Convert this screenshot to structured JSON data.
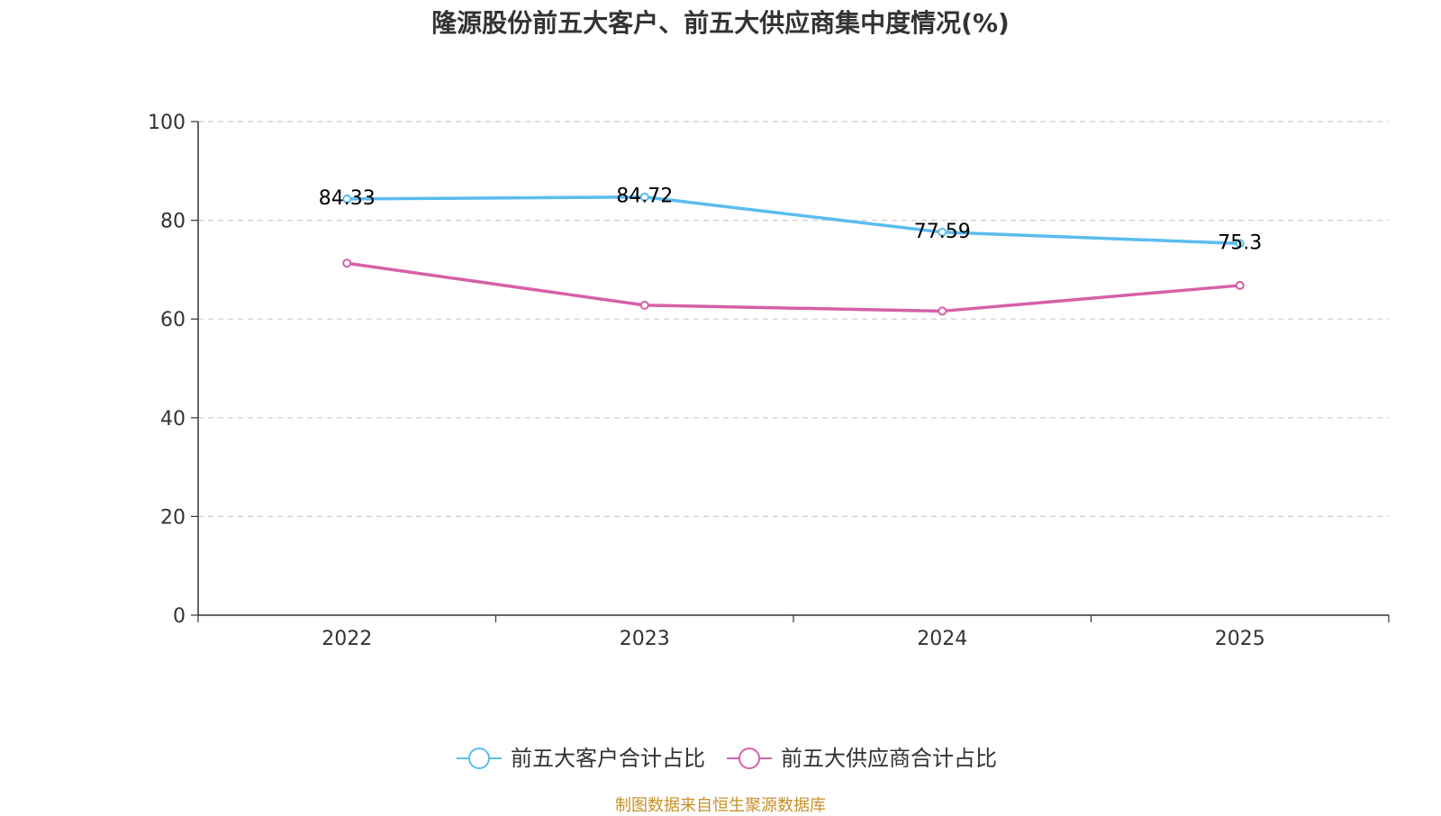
{
  "chart_data": {
    "type": "line",
    "title": "隆源股份前五大客户、前五大供应商集中度情况(%)",
    "categories": [
      "2022",
      "2023",
      "2024",
      "2025"
    ],
    "series": [
      {
        "name": "前五大客户合计占比",
        "values": [
          84.33,
          84.72,
          77.59,
          75.3
        ],
        "labels": [
          "84.33",
          "84.72",
          "77.59",
          "75.3"
        ],
        "color": "#5bbcf0"
      },
      {
        "name": "前五大供应商合计占比",
        "values": [
          71.3,
          62.8,
          61.6,
          66.8
        ],
        "color": "#d660a8"
      }
    ],
    "yticks": [
      "0",
      "20",
      "40",
      "60",
      "80",
      "100"
    ],
    "ylim": [
      0,
      100
    ],
    "xlabel": "",
    "ylabel": "",
    "grid": true,
    "legend": "bottom"
  },
  "source": "制图数据来自恒生聚源数据库"
}
